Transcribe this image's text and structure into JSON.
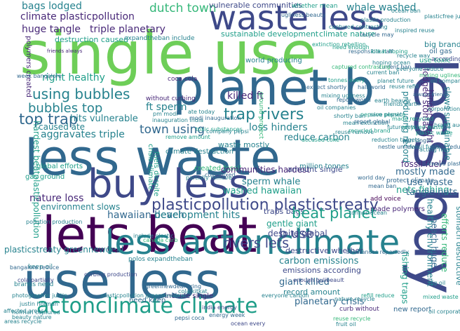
{
  "palette": [
    "#440154",
    "#482878",
    "#3e4989",
    "#31688e",
    "#26828e",
    "#1f9e89",
    "#35b779",
    "#6ece58",
    "#b5de2b",
    "#fde725"
  ],
  "words": {
    "single_use": "single use",
    "planet_b": "planet b",
    "less_waste": "less waste",
    "waste_less": "waste less",
    "lets_beat": "lets beat",
    "buy_less": "buy less",
    "use_less": "use less",
    "less_buy": "less buy",
    "less_actonclimate": "less actonclimate",
    "actonclimate_climate": "actonclimate climate",
    "plasticpollution_plasticstreaty": "plasticpollution plasticstreaty",
    "climate_plasticpollution": "climate plasticpollution",
    "huge_tangle": "huge tangle",
    "triple_planetary": "triple planetary",
    "dutch_town": "dutch town",
    "vulnerable_communities": "vulnerable communities",
    "whale_washed": "whale washed",
    "bags_lodged": "bags lodged",
    "destruction_caused": "destruction caused",
    "sustainable_development": "sustainable development",
    "climate_nature": "climate nature",
    "world_producing": "world producing",
    "right_healthy": "right healthy",
    "using_bubbles": "using bubbles",
    "bubbles_top": "bubbles top",
    "top_trap": "top trap",
    "hits_vulnerable": "hits vulnerable",
    "ft_sperm": "ft sperm",
    "killed_ft": "killed ft",
    "trap_rivers": "trap rivers",
    "town_using": "town using",
    "loss_hinders": "loss hinders",
    "reduce_carbon": "reduce carbon",
    "caused_ate": "caused ate",
    "aggravates_triple": "aggravates triple",
    "climate_destruction": "climate destruction",
    "fossil_fuel": "fossil fuel",
    "gas_ground": "gas ground",
    "global_efforts": "global efforts",
    "created_fossil": "created fossil",
    "communities_hardest": "communities hardest",
    "amount_single": "amount single",
    "sperm_whale": "sperm whale",
    "nets_fishing": "nets fishing",
    "use_waste": "use waste",
    "tangle_nets": "tangle nets",
    "mostly_made": "mostly made",
    "washed_hawaiian": "washed hawaiian",
    "nature_loss": "nature loss",
    "environment_slows": "environment slows",
    "hawaiian_beach": "hawaiian beach",
    "development_hits": "development hits",
    "traps_bags": "traps bags",
    "beat_planet": "beat planet",
    "made_polymers": "made polymers",
    "gentle_giant": "gentle giant",
    "despite_global": "despite global",
    "hardest_beatplasticpollution": "hardest beatplasticpollution",
    "b_use": "b use",
    "destructive_whether": "destructive whether",
    "rivers_lets": "rivers lets",
    "plasticstreaty_greennewdeal": "plasticstreaty greennewdeal",
    "carbon_emissions": "carbon emissions",
    "emissions_according": "emissions according",
    "giant_killed": "giant killed",
    "record_amount": "record amount",
    "planetary_crisis": "planetary crisis",
    "fishing_traps": "fishing traps",
    "healthy_environment": "healthy environment",
    "beach_huge": "beach huge",
    "efforts_reduce": "efforts reduce",
    "stomach_destructive": "stomach destructive",
    "lodged_stomach": "lodged stomach",
    "hinders_right": "hinders right",
    "slows_sustainable": "slows sustainable",
    "producing_record": "producing record",
    "include_single": "include single",
    "need_keep": "need keep",
    "keep_oil": "keep oil",
    "brands_need": "brands need",
    "curb_without": "curb without",
    "new_report": "new report",
    "oil_gas": "oil gas",
    "big_brands": "big brands",
    "according_new": "according new",
    "use_toxic": "use toxic",
    "whether_mean": "whether mean",
    "current_ban": "current ban",
    "responsible_half": "responsible half",
    "friends_always": "friends always",
    "ban_single": "ban single",
    "add_voice": "add voice",
    "polymers_created": "polymers created",
    "protect_climate": "protect climate",
    "made_recycled": "made recycled",
    "fuels_despite": "fuels despite",
    "crisis_climate": "crisis climate",
    "toxic_substances": "toxic substances",
    "always_friends": "always friends",
    "curbing_production": "curbing production",
    "pollution_production": "pollution production",
    "without_curbing": "without curbing",
    "coca_cola": "coca cola",
    "enough_gulibeault": "enough gulibeault",
    "plasticpollution_greennewdeal": "plasticpollution greennewdeal",
    "ground_protect": "ground protect",
    "captured_contrasting": "captured contrasting",
    "mixing_ugliness": "mixing ugliness",
    "recycle_way": "recycle way",
    "partially_remove": "partially remove",
    "waste_mostly": "waste mostly",
    "cola_partially": "cola partially",
    "million_tonnes": "million tonnes",
    "remove_amount": "remove amount",
    "photographer_justin": "photographer justin",
    "oil_corporation": "oil corporation",
    "reuse_recycle": "reuse recycle",
    "india_energy": "india energy",
    "week_bangalore": "week bangalore",
    "reuse_refill": "reuse refill",
    "current_ban_small": "current ban",
    "fossil_fuels": "fossil fuels",
    "canada_curb": "canada curb",
    "polos_expandtheban": "polos expandtheban",
    "include_plastic": "include plastic",
    "pm_modi": "pm modi",
    "inauguration_india": "inauguration india",
    "bangalore_reduce": "bangalore reduce",
    "cola_kitkat": "cola kitkat",
    "company_pepsi": "company pepsi",
    "tonnes_ocean": "tonnes ocean",
    "recycled_waste": "recycled waste",
    "plastic_waste": "plastic waste",
    "captured_contrasting_2": "captured contrasting",
    "ugliness_beauty": "ugliness beauty",
    "need_enough": "need enough",
    "expandtheban_include": "expandtheban include",
    "everyone_carbon": "everyone carbon",
    "nature_recycle": "nature recycle",
    "refill_reduce": "refill reduce",
    "report_world": "report world",
    "substances_reportedly": "substances reportedly",
    "fruit_oil": "fruit oil",
    "mixing_ugliness_2": "mixing ugliness",
    "oil_companies": "oil companies",
    "expect_shortly": "expect shortly",
    "half_world": "half world",
    "ate_today": "ate today",
    "cola_mixed": "cola mixed",
    "greennewdeal_bring": "greennewdeal bring",
    "ocean_every": "ocean every",
    "justin_hofman": "justin hofman",
    "affected_areas": "affected areas",
    "hofman_captured": "hofman captured",
    "beauty_nature": "beauty nature",
    "pepsi_coca": "pepsi coca",
    "energy_week": "energy week",
    "areas_recycle": "areas recycle",
    "earth_beauty": "earth beauty",
    "friends_earth": "friends earth",
    "extinction_rebellion": "extinction rebellion",
    "accused_coke": "accused coke",
    "pepsico_pepsico": "pepsico pepsico",
    "recycle_may": "recycle may",
    "plastic_production": "plastic production",
    "reduction_targets": "reduction targets",
    "nestle_unilever": "nestle unilever",
    "planet_future": "planet future",
    "ocean_ban": "ocean ban",
    "plasticfree_july": "plasticfree july",
    "kitkat_hoping": "kitkat hoping",
    "hoping_ocean": "hoping ocean",
    "modi_inauguration": "modi inauguration",
    "inspired_reuse": "inspired reuse",
    "mean_extinction": "mean extinction",
    "reuse_remove": "reuse remove",
    "recycled_brand": "recycled brand",
    "everyone_reduce": "everyone reduce",
    "oil_company": "oil company",
    "tonnes_every": "tonnes every",
    "shortly_ban": "shortly ban",
    "corporation_hope": "corporation hope",
    "brand_audit": "brand audit",
    "bring_reduce": "bring reduce",
    "always_plastic": "always plastic",
    "big_oil": "big oil",
    "mixed_waste": "mixed waste",
    "report_global": "report global",
    "save_planet": "save planet",
    "future_lets": "future lets",
    "acting_now": "acting now",
    "world_day": "world day",
    "mean_ban": "mean ban"
  }
}
